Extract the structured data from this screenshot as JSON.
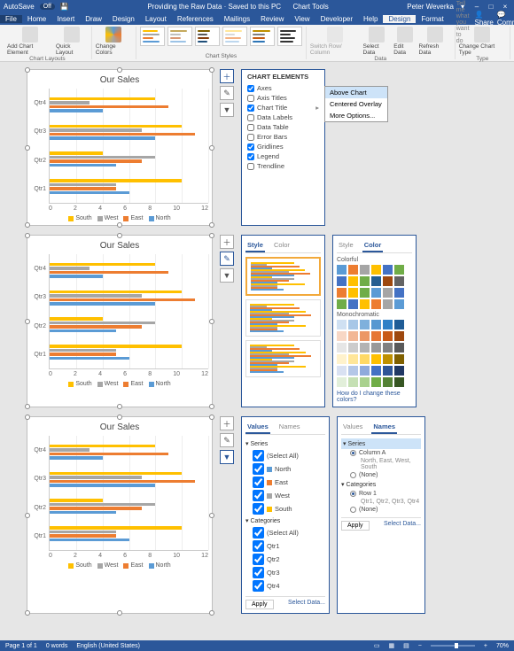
{
  "titlebar": {
    "autosave_label": "AutoSave",
    "autosave_state": "Off",
    "doc_title": "Providing the Raw Data · Saved to this PC",
    "tool_context": "Chart Tools",
    "user": "Peter Weverka",
    "min": "–",
    "max": "□",
    "close": "×"
  },
  "tabs": {
    "file": "File",
    "home": "Home",
    "insert": "Insert",
    "draw": "Draw",
    "design_doc": "Design",
    "layout": "Layout",
    "references": "References",
    "mailings": "Mailings",
    "review": "Review",
    "view": "View",
    "developer": "Developer",
    "help": "Help",
    "design": "Design",
    "format": "Format",
    "tellme": "Tell me what you want to do",
    "share": "Share",
    "comments": "Comments"
  },
  "ribbon": {
    "g1": {
      "add": "Add Chart\nElement",
      "quick": "Quick\nLayout",
      "label": "Chart Layouts"
    },
    "g2": {
      "colors": "Change\nColors"
    },
    "g3": {
      "label": "Chart Styles"
    },
    "g4": {
      "switch": "Switch Row/\nColumn",
      "select": "Select\nData",
      "edit": "Edit\nData",
      "refresh": "Refresh\nData",
      "label": "Data"
    },
    "g5": {
      "change": "Change\nChart Type",
      "label": "Type"
    },
    "style_colors": {
      "a": [
        "#ffc000",
        "#a6a6a6",
        "#ed7d31",
        "#5b9bd5"
      ],
      "b": [
        "#c5a95e",
        "#bfbfbf",
        "#d89776",
        "#9cc3e6"
      ],
      "c": [
        "#7f6000",
        "#595959",
        "#843c0c",
        "#1f4e79"
      ],
      "d": [
        "#ffe699",
        "#d9d9d9",
        "#f4b183",
        "#bdd7ee"
      ],
      "e": [
        "#bf9000",
        "#7f7f7f",
        "#c55a11",
        "#2e75b6"
      ],
      "f": [
        "#333333",
        "#333333",
        "#333333",
        "#333333"
      ]
    }
  },
  "chart": {
    "title": "Our Sales",
    "categories": [
      "Qtr4",
      "Qtr3",
      "Qtr2",
      "Qtr1"
    ],
    "series": [
      {
        "name": "South",
        "color": "#ffc000"
      },
      {
        "name": "West",
        "color": "#a6a6a6"
      },
      {
        "name": "East",
        "color": "#ed7d31"
      },
      {
        "name": "North",
        "color": "#5b9bd5"
      }
    ],
    "data": {
      "Qtr1": {
        "South": 10,
        "West": 5,
        "East": 5,
        "North": 6
      },
      "Qtr2": {
        "South": 4,
        "West": 8,
        "East": 7,
        "North": 5
      },
      "Qtr3": {
        "South": 10,
        "West": 7,
        "East": 11,
        "North": 8
      },
      "Qtr4": {
        "South": 8,
        "West": 3,
        "East": 9,
        "North": 4
      }
    },
    "xmax": 12,
    "xticks": [
      0,
      2,
      4,
      6,
      8,
      10,
      12
    ]
  },
  "chart_elements": {
    "header": "CHART ELEMENTS",
    "items": [
      {
        "label": "Axes",
        "checked": true
      },
      {
        "label": "Axis Titles",
        "checked": false
      },
      {
        "label": "Chart Title",
        "checked": true,
        "expanded": true
      },
      {
        "label": "Data Labels",
        "checked": false
      },
      {
        "label": "Data Table",
        "checked": false
      },
      {
        "label": "Error Bars",
        "checked": false
      },
      {
        "label": "Gridlines",
        "checked": true
      },
      {
        "label": "Legend",
        "checked": true
      },
      {
        "label": "Trendline",
        "checked": false
      }
    ],
    "submenu": [
      "Above Chart",
      "Centered Overlay",
      "More Options..."
    ],
    "submenu_hl": 0
  },
  "style_panel": {
    "tab_style": "Style",
    "tab_color": "Color",
    "colorful": "Colorful",
    "mono": "Monochromatic",
    "link": "How do I change these colors?",
    "palette_colorful": [
      [
        "#5b9bd5",
        "#ed7d31",
        "#a5a5a5",
        "#ffc000",
        "#4472c4",
        "#70ad47"
      ],
      [
        "#4472c4",
        "#ffc000",
        "#70ad47",
        "#255e91",
        "#9e480e",
        "#636363"
      ],
      [
        "#ed7d31",
        "#ffc000",
        "#70ad47",
        "#5b9bd5",
        "#a5a5a5",
        "#4472c4"
      ],
      [
        "#70ad47",
        "#4472c4",
        "#ffc000",
        "#ed7d31",
        "#a5a5a5",
        "#5b9bd5"
      ]
    ],
    "palette_mono": [
      [
        "#cfe0f2",
        "#a7c7e7",
        "#7fb0dc",
        "#5798d1",
        "#2f80c6",
        "#1f5c96"
      ],
      [
        "#f8d7c5",
        "#f2b795",
        "#ec9765",
        "#e67735",
        "#c85a17",
        "#9e480e"
      ],
      [
        "#e6e6e6",
        "#cccccc",
        "#b3b3b3",
        "#999999",
        "#808080",
        "#595959"
      ],
      [
        "#fff2cc",
        "#ffe699",
        "#ffd966",
        "#ffc000",
        "#bf9000",
        "#806000"
      ],
      [
        "#d9e1f2",
        "#b4c7e7",
        "#8faadc",
        "#4472c4",
        "#2f5597",
        "#203864"
      ],
      [
        "#e2efda",
        "#c5e0b4",
        "#a9d18e",
        "#70ad47",
        "#548235",
        "#375623"
      ]
    ]
  },
  "filter": {
    "tab_values": "Values",
    "tab_names": "Names",
    "series_label": "Series",
    "categories_label": "Categories",
    "select_all": "(Select All)",
    "series": [
      "North",
      "East",
      "West",
      "South"
    ],
    "series_colors": [
      "#5b9bd5",
      "#ed7d31",
      "#a6a6a6",
      "#ffc000"
    ],
    "cats": [
      "Qtr1",
      "Qtr2",
      "Qtr3",
      "Qtr4"
    ],
    "apply": "Apply",
    "select_data": "Select Data...",
    "names_col": "Column A",
    "names_col_sub": "North, East, West, South",
    "names_none": "(None)",
    "names_row": "Row 1",
    "names_row_sub": "Qtr1, Qtr2, Qtr3, Qtr4"
  },
  "status": {
    "page": "Page 1 of 1",
    "words": "0 words",
    "lang": "English (United States)",
    "zoom": "70%",
    "plus": "+",
    "minus": "−"
  }
}
